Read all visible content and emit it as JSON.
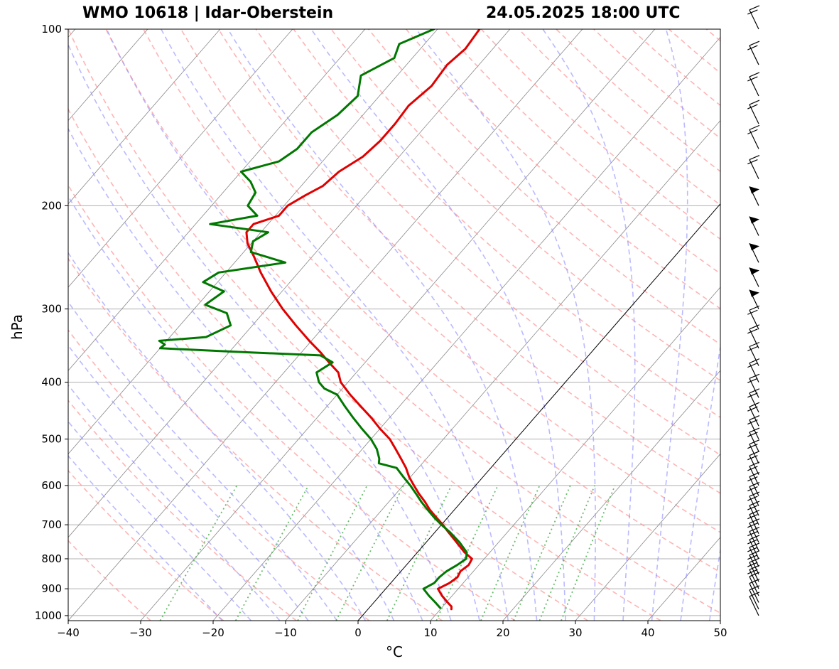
{
  "title_left": "WMO 10618 | Idar-Oberstein",
  "title_right": "24.05.2025 18:00 UTC",
  "chart_data": {
    "type": "line",
    "subtype": "skew-T log-p sounding",
    "xlabel": "°C",
    "ylabel": "hPa",
    "xlim": [
      -40,
      50
    ],
    "ylim": [
      1020,
      100
    ],
    "y_scale": "log",
    "x_ticks": [
      "−40",
      "−30",
      "−20",
      "−10",
      "0",
      "10",
      "20",
      "30",
      "40",
      "50"
    ],
    "y_ticks": [
      "100",
      "200",
      "300",
      "400",
      "500",
      "600",
      "700",
      "800",
      "900",
      "1000"
    ],
    "grid": true,
    "colors": {
      "temperature": "#e00000",
      "dewpoint": "#007800",
      "dry_adiabats": "#ff8c8c",
      "moist_adiabats": "#8c8cff",
      "mixing_ratio": "#4caf50",
      "isotherms": "#888888",
      "zero_isotherm": "#000000"
    },
    "series": [
      {
        "key": "temperature",
        "p": [
          975,
          965,
          950,
          925,
          900,
          880,
          860,
          840,
          820,
          800,
          780,
          750,
          720,
          700,
          680,
          660,
          640,
          620,
          600,
          580,
          560,
          540,
          520,
          500,
          480,
          460,
          440,
          420,
          400,
          385,
          370,
          355,
          340,
          320,
          300,
          280,
          260,
          245,
          232,
          222,
          215,
          208,
          200,
          192,
          185,
          175,
          165,
          155,
          145,
          135,
          125,
          115,
          108,
          100
        ],
        "values": [
          11.5,
          11.2,
          10.2,
          8.6,
          7.2,
          8.1,
          8.5,
          8.2,
          8.6,
          8.3,
          6.5,
          4.2,
          1.8,
          0.2,
          -1.6,
          -3.4,
          -5.0,
          -6.8,
          -8.5,
          -10.2,
          -11.7,
          -13.5,
          -15.4,
          -17.4,
          -20.0,
          -22.5,
          -25.3,
          -28.2,
          -31.0,
          -32.5,
          -35.0,
          -37.5,
          -40.3,
          -44.0,
          -47.8,
          -51.5,
          -55.2,
          -57.9,
          -60.5,
          -62.0,
          -62.0,
          -59.5,
          -59.5,
          -58.3,
          -57.0,
          -56.5,
          -55.0,
          -54.5,
          -54.5,
          -54.8,
          -54.0,
          -54.4,
          -53.8,
          -54.2
        ]
      },
      {
        "key": "dewpoint",
        "p": [
          970,
          950,
          925,
          900,
          880,
          860,
          840,
          820,
          800,
          780,
          750,
          720,
          700,
          680,
          660,
          640,
          620,
          600,
          580,
          560,
          550,
          540,
          520,
          500,
          480,
          460,
          440,
          420,
          410,
          400,
          385,
          370,
          360,
          355,
          350,
          345,
          340,
          335,
          320,
          305,
          295,
          280,
          270,
          260,
          250,
          240,
          230,
          222,
          215,
          208,
          200,
          190,
          182,
          175,
          168,
          160,
          150,
          140,
          130,
          120,
          112,
          106,
          100
        ],
        "values": [
          9.8,
          8.5,
          6.8,
          5.2,
          6.0,
          6.0,
          6.3,
          7.0,
          7.5,
          6.8,
          4.6,
          2.0,
          0.0,
          -1.9,
          -3.7,
          -5.5,
          -7.2,
          -9.0,
          -11.0,
          -13.0,
          -16.0,
          -16.5,
          -18.0,
          -20.0,
          -22.5,
          -25.0,
          -27.5,
          -30.0,
          -32.5,
          -34.0,
          -35.5,
          -34.5,
          -37.0,
          -49.0,
          -60.0,
          -59.8,
          -61.0,
          -55.0,
          -53.0,
          -55.0,
          -59.0,
          -58.0,
          -62.0,
          -61.0,
          -53.0,
          -59.0,
          -60.0,
          -59.0,
          -68.0,
          -62.5,
          -65.0,
          -65.5,
          -67.5,
          -70.0,
          -66.0,
          -65.0,
          -65.0,
          -63.5,
          -63.0,
          -65.0,
          -62.5,
          -63.5,
          -60.5
        ]
      }
    ],
    "wind_barbs_hpa": [
      1000,
      975,
      950,
      925,
      900,
      875,
      850,
      825,
      800,
      775,
      750,
      725,
      700,
      675,
      650,
      625,
      600,
      575,
      550,
      525,
      500,
      475,
      450,
      425,
      400,
      375,
      350,
      325,
      300,
      275,
      250,
      225,
      200,
      180,
      160,
      145,
      130,
      115,
      100
    ]
  }
}
